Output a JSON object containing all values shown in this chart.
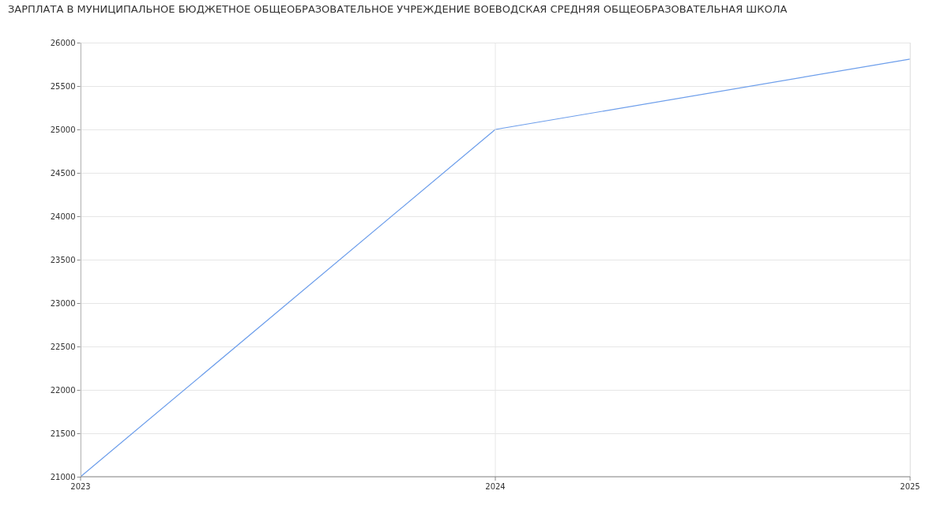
{
  "chart_data": {
    "type": "line",
    "title": "ЗАРПЛАТА В МУНИЦИПАЛЬНОЕ БЮДЖЕТНОЕ ОБЩЕОБРАЗОВАТЕЛЬНОЕ УЧРЕЖДЕНИЕ ВОЕВОДСКАЯ СРЕДНЯЯ  ОБЩЕОБРАЗОВАТЕЛЬНАЯ ШКОЛА",
    "x": [
      2023,
      2024,
      2025
    ],
    "series": [
      {
        "color": "#6d9eeb",
        "values": [
          21000,
          25000,
          25810
        ]
      }
    ],
    "xlim": [
      2023,
      2025
    ],
    "xticks": [
      2023,
      2024,
      2025
    ],
    "ylim": [
      21000,
      26000
    ],
    "yticks": [
      21000,
      21500,
      22000,
      22500,
      23000,
      23500,
      24000,
      24500,
      25000,
      25500,
      26000
    ],
    "grid": true
  }
}
